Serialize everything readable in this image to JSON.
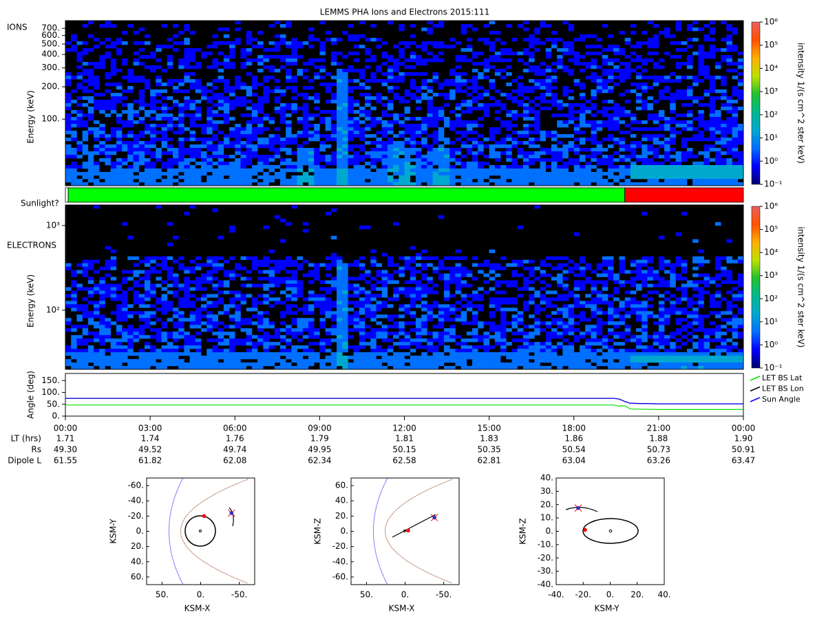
{
  "title": "LEMMS PHA Ions and Electrons  2015:111",
  "chart_data": [
    {
      "type": "spectrogram",
      "panel_label": "IONS",
      "y_label": "Energy (keV)",
      "log_scale": true,
      "xlim": [
        0,
        24
      ],
      "ylim": [
        24,
        826
      ],
      "yticks": [
        {
          "value": 100,
          "label": "100."
        },
        {
          "value": 200,
          "label": "200."
        },
        {
          "value": 300,
          "label": "300."
        },
        {
          "value": 400,
          "label": "400."
        },
        {
          "value": 500,
          "label": "500."
        },
        {
          "value": 600,
          "label": "600."
        },
        {
          "value": 700,
          "label": "700."
        }
      ],
      "colorbar": {
        "label": "intensity 1/(s cm^2 ster keV)",
        "log_scale": true,
        "lim": [
          0.1,
          1000000
        ],
        "colors": [
          "#000070",
          "#0000ff",
          "#0070ff",
          "#00a8d0",
          "#00b890",
          "#20c030",
          "#c0e000",
          "#ffb000",
          "#ff5000",
          "#e86060"
        ],
        "ticks": [
          {
            "value": 0.1,
            "label": "10⁻¹"
          },
          {
            "value": 1,
            "label": "10⁰"
          },
          {
            "value": 10,
            "label": "10¹"
          },
          {
            "value": 100,
            "label": "10²"
          },
          {
            "value": 1000,
            "label": "10³"
          },
          {
            "value": 10000,
            "label": "10⁴"
          },
          {
            "value": 100000,
            "label": "10⁵"
          },
          {
            "value": 1000000,
            "label": "10⁶"
          }
        ]
      }
    },
    {
      "type": "timeline",
      "label": "Sunlight?",
      "xlim": [
        0,
        24
      ],
      "segments": [
        {
          "start": 0,
          "end": 0.1,
          "color": "#ffffff"
        },
        {
          "start": 0.1,
          "end": 19.8,
          "color": "#00ff00"
        },
        {
          "start": 19.8,
          "end": 24,
          "color": "#ff0000"
        }
      ]
    },
    {
      "type": "spectrogram",
      "panel_label": "ELECTRONS",
      "y_label": "Energy (keV)",
      "log_scale": true,
      "xlim": [
        0,
        24
      ],
      "ylim": [
        20,
        1750
      ],
      "yticks": [
        {
          "value": 100,
          "label": "10²"
        },
        {
          "value": 1000,
          "label": "10³"
        }
      ],
      "colorbar": {
        "label": "intensity 1/(s cm^2 ster keV)",
        "log_scale": true,
        "lim": [
          0.1,
          1000000
        ],
        "colors": [
          "#000070",
          "#0000ff",
          "#0070ff",
          "#00a8d0",
          "#00b890",
          "#20c030",
          "#c0e000",
          "#ffb000",
          "#ff5000",
          "#e86060"
        ],
        "ticks": [
          {
            "value": 0.1,
            "label": "10⁻¹"
          },
          {
            "value": 1,
            "label": "10⁰"
          },
          {
            "value": 10,
            "label": "10¹"
          },
          {
            "value": 100,
            "label": "10²"
          },
          {
            "value": 1000,
            "label": "10³"
          },
          {
            "value": 10000,
            "label": "10⁴"
          },
          {
            "value": 100000,
            "label": "10⁵"
          },
          {
            "value": 1000000,
            "label": "10⁶"
          }
        ]
      }
    },
    {
      "type": "line",
      "y_label": "Angle (deg)",
      "xlim": [
        0,
        24
      ],
      "ylim": [
        0,
        180
      ],
      "yticks": [
        {
          "value": 0,
          "label": "0."
        },
        {
          "value": 50,
          "label": "50."
        },
        {
          "value": 100,
          "label": "100."
        },
        {
          "value": 150,
          "label": "150."
        }
      ],
      "xticks": [
        {
          "value": 0,
          "label": "00:00"
        },
        {
          "value": 3,
          "label": "03:00"
        },
        {
          "value": 6,
          "label": "06:00"
        },
        {
          "value": 9,
          "label": "09:00"
        },
        {
          "value": 12,
          "label": "12:00"
        },
        {
          "value": 15,
          "label": "15:00"
        },
        {
          "value": 18,
          "label": "18:00"
        },
        {
          "value": 21,
          "label": "21:00"
        },
        {
          "value": 24,
          "label": "00:00"
        }
      ],
      "x": [
        0,
        3,
        6,
        9,
        12,
        15,
        18,
        19.4,
        19.6,
        19.8,
        20,
        21,
        24
      ],
      "series": [
        {
          "name": "LET BS Lat",
          "color": "#00e000",
          "values": [
            47,
            47,
            47,
            47,
            47,
            47,
            47,
            47,
            42,
            44,
            30,
            28,
            28
          ]
        },
        {
          "name": "LET BS Lon",
          "color": "#000000",
          "values": [
            75,
            75,
            75,
            75,
            75,
            75,
            75,
            75,
            72,
            62,
            54,
            52,
            52
          ]
        },
        {
          "name": "Sun Angle",
          "color": "#0000ff",
          "values": [
            75,
            75,
            75,
            75,
            75,
            75,
            75,
            75,
            72,
            62,
            54,
            52,
            52
          ]
        }
      ]
    },
    {
      "type": "scatter",
      "x_label": "KSM-X",
      "y_label": "KSM-Y",
      "xlim": [
        70,
        -70
      ],
      "ylim": [
        70,
        -70
      ],
      "xticks": [
        {
          "value": 50,
          "label": "50."
        },
        {
          "value": 0,
          "label": "0."
        },
        {
          "value": -50,
          "label": "-50."
        }
      ],
      "yticks": [
        {
          "value": -60,
          "label": "-60."
        },
        {
          "value": -40,
          "label": "-40."
        },
        {
          "value": -20,
          "label": "-20."
        },
        {
          "value": 0,
          "label": "0."
        },
        {
          "value": 20,
          "label": "20."
        },
        {
          "value": 40,
          "label": "40."
        },
        {
          "value": 60,
          "label": "60."
        }
      ],
      "series": [
        {
          "color": "#ff0000",
          "x": [
            -4.5
          ],
          "values": [
            -20
          ]
        },
        {
          "color": "#3030c0",
          "x": [
            -40
          ],
          "values": [
            -24
          ]
        }
      ]
    },
    {
      "type": "scatter",
      "x_label": "KSM-X",
      "y_label": "KSM-Z",
      "xlim": [
        70,
        -70
      ],
      "ylim": [
        -70,
        70
      ],
      "xticks": [
        {
          "value": 50,
          "label": "50."
        },
        {
          "value": 0,
          "label": "0."
        },
        {
          "value": -50,
          "label": "-50."
        }
      ],
      "yticks": [
        {
          "value": 60,
          "label": "60."
        },
        {
          "value": 40,
          "label": "40."
        },
        {
          "value": 20,
          "label": "20."
        },
        {
          "value": 0,
          "label": "0."
        },
        {
          "value": -20,
          "label": "-20."
        },
        {
          "value": -40,
          "label": "-40."
        },
        {
          "value": -60,
          "label": "-60."
        }
      ],
      "series": [
        {
          "color": "#ff0000",
          "x": [
            -4
          ],
          "values": [
            1
          ]
        },
        {
          "color": "#3030c0",
          "x": [
            -38
          ],
          "values": [
            18
          ]
        }
      ]
    },
    {
      "type": "scatter",
      "x_label": "KSM-Y",
      "y_label": "KSM-Z",
      "xlim": [
        -40,
        40
      ],
      "ylim": [
        -40,
        40
      ],
      "xticks": [
        {
          "value": -40,
          "label": "-40."
        },
        {
          "value": -20,
          "label": "-20."
        },
        {
          "value": 0,
          "label": "0."
        },
        {
          "value": 20,
          "label": "20."
        },
        {
          "value": 40,
          "label": "40."
        }
      ],
      "yticks": [
        {
          "value": 40,
          "label": "40."
        },
        {
          "value": 30,
          "label": "30."
        },
        {
          "value": 20,
          "label": "20."
        },
        {
          "value": 10,
          "label": "10."
        },
        {
          "value": 0,
          "label": "0."
        },
        {
          "value": -10,
          "label": "-10."
        },
        {
          "value": -20,
          "label": "-20."
        },
        {
          "value": -30,
          "label": "-30."
        },
        {
          "value": -40,
          "label": "-40."
        }
      ],
      "series": [
        {
          "color": "#ff0000",
          "x": [
            -18.6
          ],
          "values": [
            1
          ]
        },
        {
          "color": "#3030c0",
          "x": [
            -23.7
          ],
          "values": [
            17.5
          ]
        }
      ]
    }
  ],
  "ephemeris": {
    "rows": [
      {
        "label": "LT (hrs)",
        "values": [
          "1.71",
          "1.74",
          "1.76",
          "1.79",
          "1.81",
          "1.83",
          "1.86",
          "1.88",
          "1.90"
        ]
      },
      {
        "label": "Rs",
        "values": [
          "49.30",
          "49.52",
          "49.74",
          "49.95",
          "50.15",
          "50.35",
          "50.54",
          "50.73",
          "50.91"
        ]
      },
      {
        "label": "Dipole L",
        "values": [
          "61.55",
          "61.82",
          "62.08",
          "62.34",
          "62.58",
          "62.81",
          "63.04",
          "63.26",
          "63.47"
        ]
      }
    ]
  }
}
